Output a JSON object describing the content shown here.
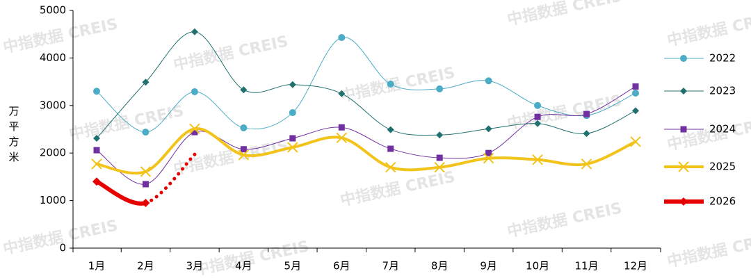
{
  "chart_data": {
    "type": "line",
    "watermark": "中指数据 CREIS",
    "y_label": "万平方米",
    "categories": [
      "1月",
      "2月",
      "3月",
      "4月",
      "5月",
      "6月",
      "7月",
      "8月",
      "9月",
      "10月",
      "11月",
      "12月"
    ],
    "ylim": [
      0,
      5000
    ],
    "yticks": [
      0,
      1000,
      2000,
      3000,
      4000,
      5000
    ],
    "grid": false,
    "legend": "right",
    "smooth": true,
    "series": [
      {
        "name": "2022",
        "color": "#4bacc6",
        "marker": "circle",
        "line_width": 1,
        "values": [
          3300,
          2440,
          3290,
          2530,
          2850,
          4430,
          3450,
          3350,
          3520,
          3000,
          2790,
          3260
        ]
      },
      {
        "name": "2023",
        "color": "#20706f",
        "marker": "diamond",
        "line_width": 1,
        "values": [
          2310,
          3490,
          4550,
          3330,
          3440,
          3250,
          2490,
          2380,
          2510,
          2620,
          2410,
          2890
        ]
      },
      {
        "name": "2024",
        "color": "#7030a0",
        "marker": "square",
        "line_width": 1,
        "values": [
          2060,
          1345,
          2440,
          2080,
          2310,
          2540,
          2090,
          1900,
          2000,
          2760,
          2820,
          3400
        ]
      },
      {
        "name": "2025",
        "color": "#f2c31a",
        "marker": "x",
        "line_width": 4,
        "values": [
          1770,
          1610,
          2510,
          1960,
          2120,
          2320,
          1700,
          1700,
          1890,
          1860,
          1770,
          2240
        ]
      },
      {
        "name": "2026",
        "color": "#e60000",
        "marker": "diamond",
        "line_width": 6,
        "dotted_after_index": 1,
        "values": [
          1400,
          950,
          1970,
          null,
          null,
          null,
          null,
          null,
          null,
          null,
          null,
          null
        ]
      }
    ]
  }
}
